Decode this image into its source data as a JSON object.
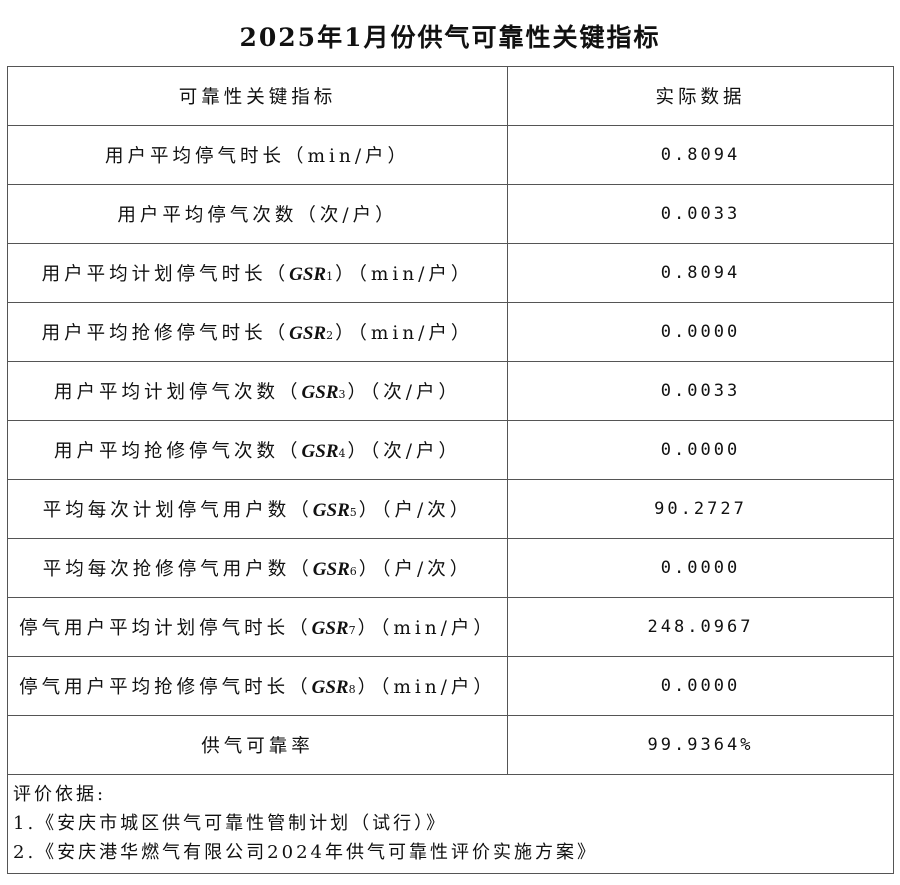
{
  "title": "2025年1月份供气可靠性关键指标",
  "headers": [
    "可靠性关键指标",
    "实际数据"
  ],
  "rows": [
    {
      "prefix": "用户平均停气时长",
      "code": "",
      "sub": "",
      "unit": "（min/户）",
      "value": "0.8094"
    },
    {
      "prefix": "用户平均停气次数",
      "code": "",
      "sub": "",
      "unit": "（次/户）",
      "value": "0.0033"
    },
    {
      "prefix": "用户平均计划停气时长（",
      "code": "GSR",
      "sub": "1",
      "unit": "）（min/户）",
      "value": "0.8094"
    },
    {
      "prefix": "用户平均抢修停气时长（",
      "code": "GSR",
      "sub": "2",
      "unit": "）（min/户）",
      "value": "0.0000"
    },
    {
      "prefix": "用户平均计划停气次数（",
      "code": "GSR",
      "sub": "3",
      "unit": "）（次/户）",
      "value": "0.0033"
    },
    {
      "prefix": "用户平均抢修停气次数（",
      "code": "GSR",
      "sub": "4",
      "unit": "）（次/户）",
      "value": "0.0000"
    },
    {
      "prefix": "平均每次计划停气用户数（",
      "code": "GSR",
      "sub": "5",
      "unit": "）（户/次）",
      "value": "90.2727"
    },
    {
      "prefix": "平均每次抢修停气用户数（",
      "code": "GSR",
      "sub": "6",
      "unit": "）（户/次）",
      "value": "0.0000"
    },
    {
      "prefix": "停气用户平均计划停气时长（",
      "code": "GSR",
      "sub": "7",
      "unit": "）（min/户）",
      "value": "248.0967"
    },
    {
      "prefix": "停气用户平均抢修停气时长（",
      "code": "GSR",
      "sub": "8",
      "unit": "）（min/户）",
      "value": "0.0000"
    },
    {
      "prefix": "供气可靠率",
      "code": "",
      "sub": "",
      "unit": "",
      "value": "99.9364%"
    }
  ],
  "footer": {
    "heading": "评价依据:",
    "items": [
      "1.《安庆市城区供气可靠性管制计划（试行）》",
      "2.《安庆港华燃气有限公司2024年供气可靠性评价实施方案》"
    ]
  }
}
